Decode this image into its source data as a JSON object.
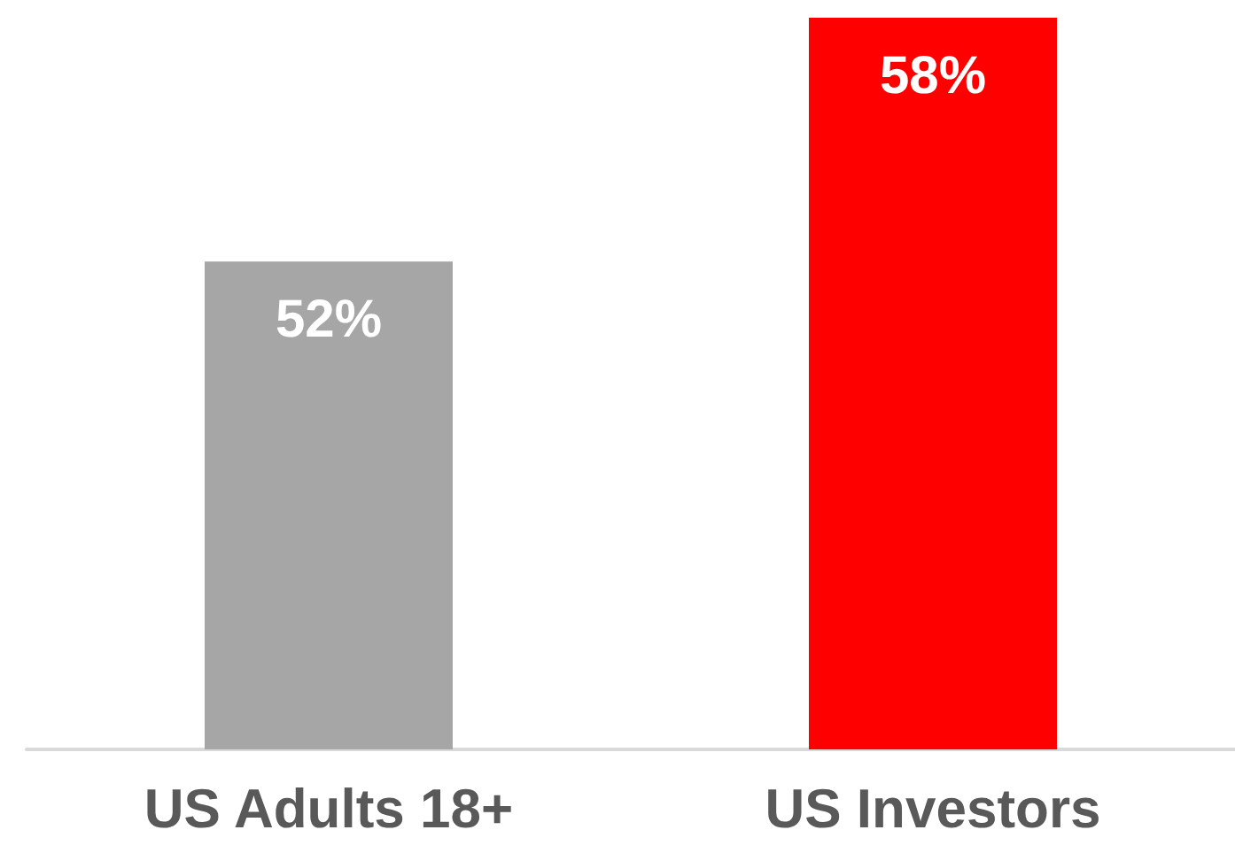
{
  "chart_data": {
    "type": "bar",
    "categories": [
      "US Adults 18+",
      "US Investors"
    ],
    "values": [
      52,
      58
    ],
    "value_labels": [
      "52%",
      "58%"
    ],
    "colors": [
      "#a6a6a6",
      "#ff0000"
    ],
    "ylim": [
      40,
      58
    ],
    "tick_labels": "x"
  }
}
